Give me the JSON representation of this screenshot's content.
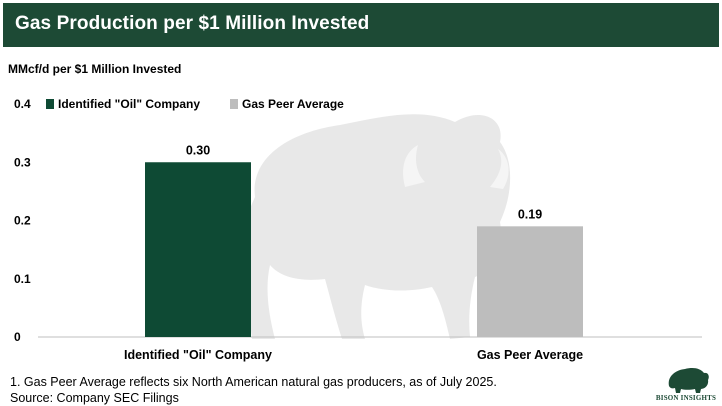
{
  "header": {
    "title": "Gas Production per $1 Million Invested"
  },
  "chart_data": {
    "type": "bar",
    "categories": [
      "Identified \"Oil\" Company",
      "Gas Peer Average"
    ],
    "values": [
      0.3,
      0.19
    ],
    "value_labels": [
      "0.30",
      "0.19"
    ],
    "colors": [
      "#0e4a34",
      "#bdbdbd"
    ],
    "ylabel": "MMcf/d per $1 Million Invested",
    "ylim": [
      0,
      0.4
    ],
    "y_ticks": [
      0,
      0.1,
      0.2,
      0.3,
      0.4
    ],
    "y_tick_labels": [
      "0",
      "0.1",
      "0.2",
      "0.3",
      "0.4"
    ],
    "legend": [
      {
        "label": "Identified \"Oil\" Company",
        "color": "#0e4a34"
      },
      {
        "label": "Gas Peer Average",
        "color": "#bdbdbd"
      }
    ],
    "legend_position": "top-left",
    "grid": false
  },
  "footnotes": {
    "note": "1. Gas Peer Average reflects six North American natural gas producers, as of July 2025.",
    "source": "Source: Company SEC Filings"
  },
  "logo": {
    "text": "BISON INSIGHTS"
  }
}
